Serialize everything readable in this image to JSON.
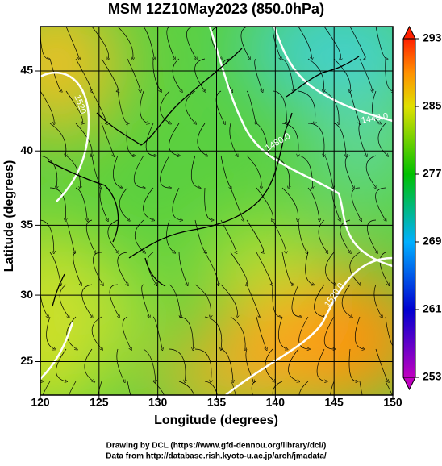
{
  "title": "MSM 12Z10May2023 (850.0hPa)",
  "x_axis": {
    "label": "Longitude (degrees)",
    "lim": [
      120,
      150
    ],
    "ticks": [
      120,
      125,
      130,
      135,
      140,
      145,
      150
    ]
  },
  "y_axis": {
    "label": "Latitude  (degrees)",
    "lim": [
      22.4,
      47.6
    ],
    "ticks": [
      25,
      30,
      35,
      40,
      45
    ],
    "scale": "mercator"
  },
  "colorbar": {
    "lim": [
      253,
      293
    ],
    "ticks": [
      253,
      261,
      269,
      277,
      285,
      293
    ]
  },
  "contour_labels": [
    "1520",
    "1480.0",
    "1440.0",
    "1520.0"
  ],
  "footer": [
    "Drawing by DCL (https://www.gfd-dennou.org/library/dcl/)",
    "Data from http://database.rish.kyoto-u.ac.jp/arch/jmadata/"
  ]
}
